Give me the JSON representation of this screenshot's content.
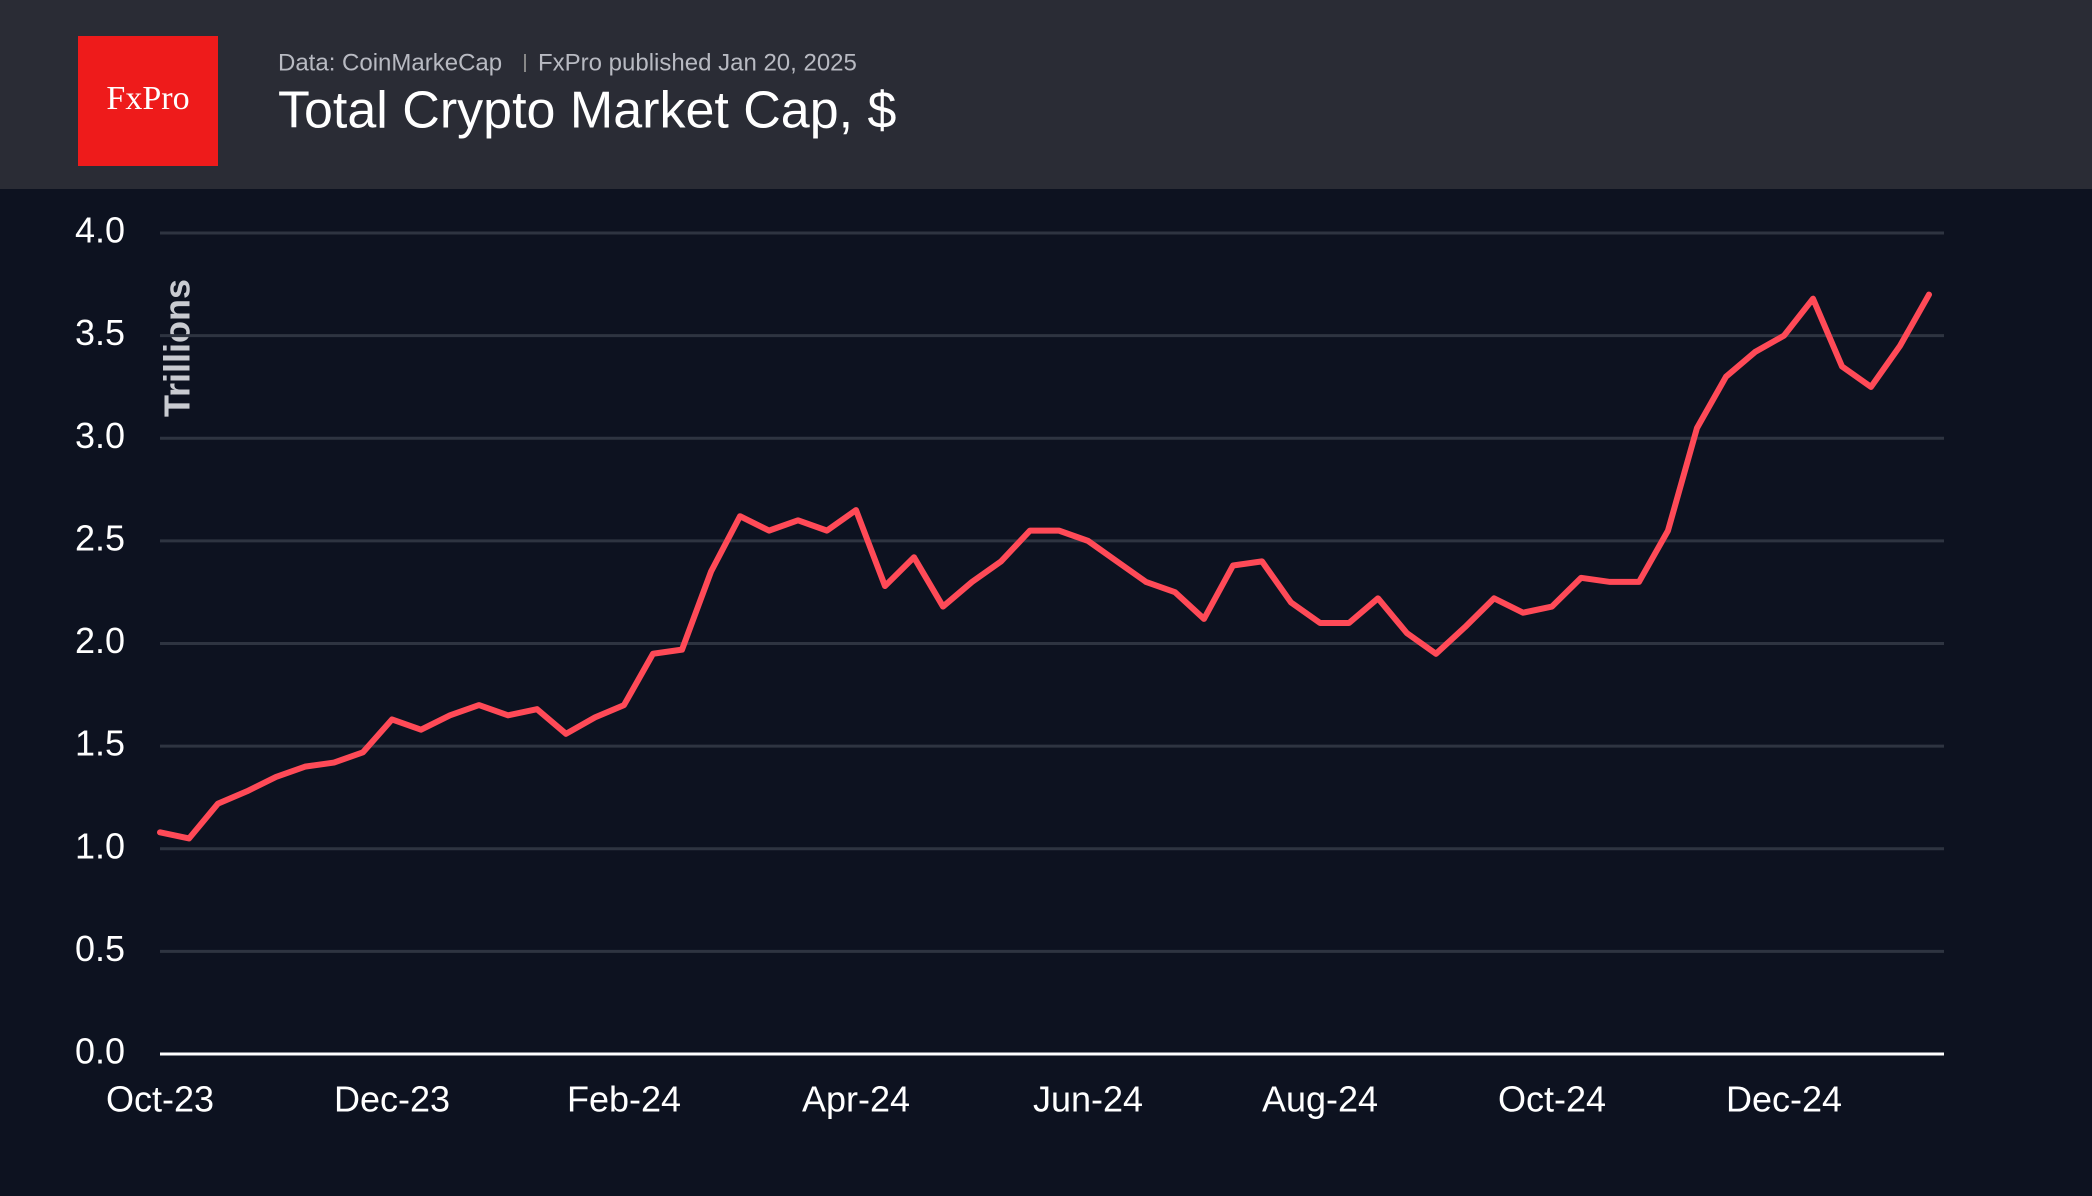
{
  "header": {
    "logo": "FxPro",
    "source": "Data: CoinMarkeCap",
    "publisher": "FxPro published Jan 20, 2025"
  },
  "chart_data": {
    "type": "line",
    "title": "Total Crypto Market Cap, $",
    "y_label": "Trillions",
    "categories": [
      "Oct-23",
      null,
      null,
      null,
      null,
      null,
      null,
      null,
      "Dec-23",
      null,
      null,
      null,
      null,
      null,
      null,
      null,
      "Feb-24",
      null,
      null,
      null,
      null,
      null,
      null,
      null,
      "Apr-24",
      null,
      null,
      null,
      null,
      null,
      null,
      null,
      "Jun-24",
      null,
      null,
      null,
      null,
      null,
      null,
      null,
      "Aug-24",
      null,
      null,
      null,
      null,
      null,
      null,
      null,
      "Oct-24",
      null,
      null,
      null,
      null,
      null,
      null,
      null,
      "Dec-24",
      null,
      null,
      null,
      null,
      null
    ],
    "series": [
      {
        "name": "Total Crypto Market Cap",
        "color": "#ff4a57",
        "values": [
          1.08,
          1.05,
          1.22,
          1.28,
          1.35,
          1.4,
          1.42,
          1.47,
          1.63,
          1.58,
          1.65,
          1.7,
          1.65,
          1.68,
          1.56,
          1.64,
          1.7,
          1.95,
          1.97,
          2.35,
          2.62,
          2.55,
          2.6,
          2.55,
          2.65,
          2.28,
          2.42,
          2.18,
          2.3,
          2.4,
          2.55,
          2.55,
          2.5,
          2.4,
          2.3,
          2.25,
          2.12,
          2.38,
          2.4,
          2.2,
          2.1,
          2.1,
          2.22,
          2.05,
          1.95,
          2.08,
          2.22,
          2.15,
          2.18,
          2.32,
          2.3,
          2.3,
          2.55,
          3.05,
          3.3,
          3.42,
          3.5,
          3.68,
          3.35,
          3.25,
          3.45,
          3.7
        ]
      }
    ],
    "ylim": [
      0,
      4
    ],
    "yticks": [
      {
        "value": 0,
        "label": "0.0"
      },
      0.5,
      {
        "value": 1,
        "label": "1.0"
      },
      1.5,
      {
        "value": 2,
        "label": "2.0"
      },
      2.5,
      {
        "value": 3,
        "label": "3.0"
      },
      3.5,
      {
        "value": 4,
        "label": "4.0"
      }
    ],
    "grid": true
  }
}
